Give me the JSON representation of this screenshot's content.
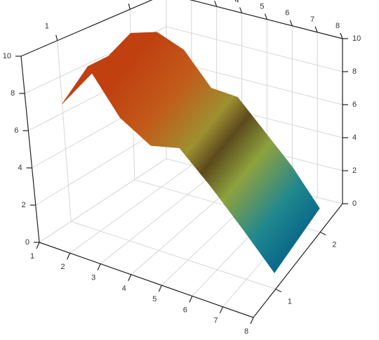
{
  "chart_data": {
    "type": "surface",
    "x_axis": {
      "ticks": [
        1,
        2,
        3,
        4,
        5,
        6,
        7,
        8
      ],
      "range": [
        1,
        8
      ]
    },
    "z_axis": {
      "ticks": [
        1,
        2
      ],
      "range": [
        0.5,
        2.5
      ]
    },
    "y_axis": {
      "ticks": [
        0,
        2,
        4,
        6,
        8,
        10
      ],
      "range": [
        0,
        10
      ]
    },
    "x": [
      1,
      2,
      3,
      4,
      5,
      6,
      7,
      8
    ],
    "z": [
      1,
      2
    ],
    "values": [
      [
        6.5,
        9.1,
        6.8,
        5.8,
        6.2,
        4.6,
        2.8,
        0.9
      ],
      [
        8.6,
        9.1,
        8.5,
        6.7,
        6.6,
        5.0,
        3.4,
        1.4
      ]
    ],
    "colors": [
      "#c0400f",
      "#c25a1a",
      "#9e9030",
      "#5c4a1c",
      "#8ea23e",
      "#20888e",
      "#0c6a8a"
    ],
    "grid": true,
    "projection": "3d-perspective"
  }
}
